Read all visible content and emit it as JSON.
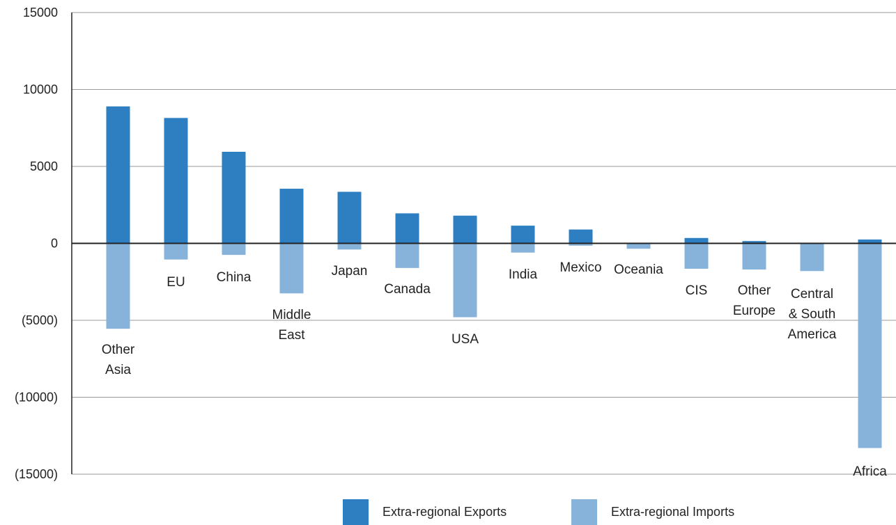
{
  "chart_data": {
    "type": "bar",
    "categories": [
      "Other Asia",
      "EU",
      "China",
      "Middle East",
      "Japan",
      "Canada",
      "USA",
      "India",
      "Mexico",
      "Oceania",
      "CIS",
      "Other Europe",
      "Central & South America",
      "Africa"
    ],
    "category_label_lines": [
      [
        "Other",
        "Asia"
      ],
      [
        "EU"
      ],
      [
        "China"
      ],
      [
        "Middle",
        "East"
      ],
      [
        "Japan"
      ],
      [
        "Canada"
      ],
      [
        "USA"
      ],
      [
        "India"
      ],
      [
        "Mexico"
      ],
      [
        "Oceania"
      ],
      [
        "CIS"
      ],
      [
        "Other",
        "Europe"
      ],
      [
        "Central",
        "& South",
        "America"
      ],
      [
        "Africa"
      ]
    ],
    "series": [
      {
        "name": "Extra-regional Exports",
        "color": "#2e7fc1",
        "values": [
          8900,
          8150,
          5950,
          3550,
          3350,
          1950,
          1800,
          1150,
          900,
          0,
          350,
          150,
          0,
          250
        ]
      },
      {
        "name": "Extra-regional Imports",
        "color": "#87b3da",
        "values": [
          -5550,
          -1050,
          -750,
          -3250,
          -400,
          -1600,
          -4800,
          -600,
          -150,
          -350,
          -1650,
          -1700,
          -1800,
          -13300
        ]
      }
    ],
    "ylim": [
      -15000,
      15000
    ],
    "yticks": [
      15000,
      10000,
      5000,
      0,
      -5000,
      -10000,
      -15000
    ],
    "ytick_labels": [
      "15000",
      "10000",
      "5000",
      "0",
      "(5000)",
      "(10000)",
      "(15000)"
    ],
    "grid": true,
    "legend_position": "bottom-center"
  }
}
